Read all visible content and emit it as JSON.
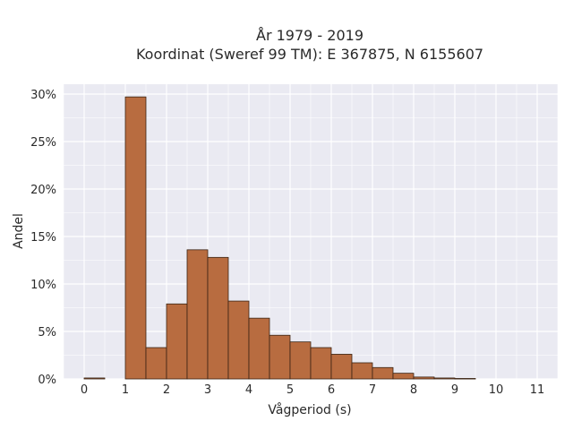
{
  "chart_data": {
    "type": "bar",
    "title_lines": [
      "År 1979 - 2019",
      "Koordinat (Sweref 99 TM): E 367875, N 6155607"
    ],
    "xlabel": "Vågperiod (s)",
    "ylabel": "Andel",
    "x_ticks": [
      "0",
      "1",
      "2",
      "3",
      "4",
      "5",
      "6",
      "7",
      "8",
      "9",
      "10",
      "11"
    ],
    "y_ticks": [
      "0%",
      "5%",
      "10%",
      "15%",
      "20%",
      "25%",
      "30%"
    ],
    "xlim": [
      -0.5,
      11.5
    ],
    "ylim": [
      0,
      0.3
    ],
    "bin_width": 0.5,
    "grid": true,
    "colors": {
      "bar_fill": "#b86c40",
      "bar_stroke": "#3a2414",
      "plot_background": "#eaeaf2",
      "grid": "#ffffff"
    },
    "bins": [
      {
        "start": 0.0,
        "value": 0.001
      },
      {
        "start": 1.0,
        "value": 0.297
      },
      {
        "start": 1.5,
        "value": 0.033
      },
      {
        "start": 2.0,
        "value": 0.079
      },
      {
        "start": 2.5,
        "value": 0.136
      },
      {
        "start": 3.0,
        "value": 0.128
      },
      {
        "start": 3.5,
        "value": 0.082
      },
      {
        "start": 4.0,
        "value": 0.064
      },
      {
        "start": 4.5,
        "value": 0.046
      },
      {
        "start": 5.0,
        "value": 0.039
      },
      {
        "start": 5.5,
        "value": 0.033
      },
      {
        "start": 6.0,
        "value": 0.026
      },
      {
        "start": 6.5,
        "value": 0.017
      },
      {
        "start": 7.0,
        "value": 0.012
      },
      {
        "start": 7.5,
        "value": 0.006
      },
      {
        "start": 8.0,
        "value": 0.002
      },
      {
        "start": 8.5,
        "value": 0.001
      },
      {
        "start": 9.0,
        "value": 0.0005
      }
    ]
  }
}
